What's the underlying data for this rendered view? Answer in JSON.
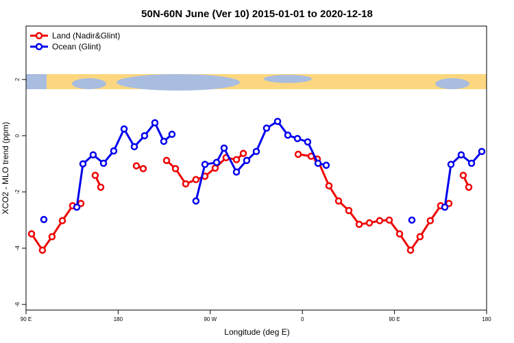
{
  "chart_data": {
    "type": "line",
    "title": "50N-60N June (Ver 10)   2015-01-01 to 2020-12-18",
    "x_label": "Longitude (deg E)",
    "y_label": "XCO2 - MLO trend (ppm)",
    "xlim": [
      90,
      540
    ],
    "ylim": [
      -6.2,
      3.9
    ],
    "xticks": [
      {
        "value": 90,
        "label": "90 E"
      },
      {
        "value": 180,
        "label": "180"
      },
      {
        "value": 270,
        "label": "90 W"
      },
      {
        "value": 360,
        "label": "0"
      },
      {
        "value": 450,
        "label": "90 E"
      },
      {
        "value": 540,
        "label": "180"
      }
    ],
    "yticks": [
      -6,
      -4,
      -2,
      0,
      2
    ],
    "legend": "top-left",
    "series": [
      {
        "name": "Land (Nadir&Glint)",
        "color": "#ee0000",
        "x": [
          95.4,
          106,
          115.4,
          125.5,
          135.5,
          143.6,
          null,
          157.6,
          163,
          null,
          197.8,
          204.5,
          null,
          227.3,
          236,
          246,
          256,
          264.8,
          274.8,
          285.5,
          295.6,
          302.3,
          null,
          355.9,
          368.6,
          374.6,
          386,
          395.4,
          405.4,
          415.5,
          425.5,
          435.5,
          444.9,
          455,
          465.7,
          475,
          485,
          495.1,
          503.2,
          null,
          517.2,
          522.6
        ],
        "values": [
          -3.49,
          -4.07,
          -3.59,
          -3.02,
          -2.49,
          -2.41,
          null,
          -1.41,
          -1.83,
          null,
          -1.07,
          -1.17,
          null,
          -0.88,
          -1.17,
          -1.71,
          -1.56,
          -1.44,
          -1.15,
          -0.78,
          -0.85,
          -0.63,
          null,
          -0.66,
          -0.73,
          -0.83,
          -1.78,
          -2.32,
          -2.66,
          -3.15,
          -3.1,
          -3.02,
          -3.0,
          -3.49,
          -4.07,
          -3.59,
          -3.02,
          -2.49,
          -2.41,
          null,
          -1.41,
          -1.83
        ]
      },
      {
        "name": "Ocean (Glint)",
        "color": "#0000ee",
        "x": [
          107.4,
          null,
          139.6,
          145.6,
          155.6,
          165.7,
          175.7,
          185.8,
          195.8,
          205.8,
          215.9,
          224.6,
          232.6,
          null,
          256,
          264.8,
          276.2,
          283.5,
          295.6,
          305.6,
          315,
          325,
          335.8,
          345.8,
          355.2,
          365.2,
          375.3,
          383.3,
          null,
          467,
          null,
          499.2,
          505.2,
          515.2,
          525.3,
          535.3
        ],
        "values": [
          -2.98,
          null,
          -2.54,
          -1.0,
          -0.68,
          -0.98,
          -0.54,
          0.24,
          -0.39,
          0.0,
          0.46,
          -0.2,
          0.05,
          null,
          -2.32,
          -1.02,
          -0.95,
          -0.44,
          -1.29,
          -0.88,
          -0.56,
          0.27,
          0.51,
          0.02,
          -0.1,
          -0.22,
          -0.98,
          -1.05,
          null,
          -3.0,
          null,
          -2.54,
          -1.02,
          -0.68,
          -0.98,
          -0.56
        ]
      }
    ]
  }
}
